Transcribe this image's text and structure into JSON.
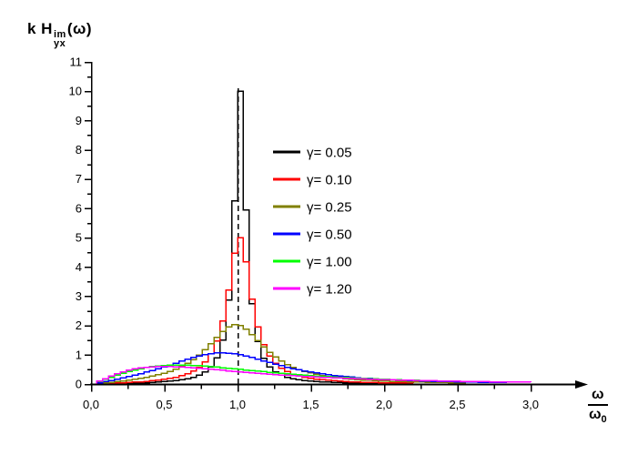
{
  "ui": {
    "page_bg": "#ffffff",
    "axis_color": "#000000",
    "dashed_line_color": "#000000"
  },
  "title": {
    "prefix": "k H",
    "sup": "im",
    "sub": "yx",
    "suffix": "(ω)"
  },
  "x_axis": {
    "label_numerator": "ω",
    "label_denominator": "ω",
    "label_denominator_sub": "0"
  },
  "chart_data": {
    "type": "line",
    "title": "k H_yx^im(omega)  vs  omega/omega_0",
    "xlabel": "ω/ω₀",
    "ylabel": "k H_yx^im(ω)",
    "xlim": [
      0,
      3.35
    ],
    "ylim": [
      0,
      11
    ],
    "grid": false,
    "legend_position": "upper-center-right",
    "x_ticks_major": [
      0.0,
      0.5,
      1.0,
      1.5,
      2.0,
      2.5,
      3.0
    ],
    "x_tick_labels": [
      "0,0",
      "0,5",
      "1,0",
      "1,5",
      "2,0",
      "2,5",
      "3,0"
    ],
    "x_ticks_minor": [
      0.25,
      0.75,
      1.25,
      1.75,
      2.25,
      2.75
    ],
    "y_ticks_major": [
      0,
      1,
      2,
      3,
      4,
      5,
      6,
      7,
      8,
      9,
      10,
      11
    ],
    "y_tick_labels": [
      "0",
      "1",
      "2",
      "3",
      "4",
      "5",
      "6",
      "7",
      "8",
      "9",
      "10",
      "11"
    ],
    "y_ticks_minor": [
      0.5,
      1.5,
      2.5,
      3.5,
      4.5,
      5.5,
      6.5,
      7.5,
      8.5,
      9.5,
      10.5
    ],
    "reference_line": {
      "x": 1.0,
      "style": "dashed",
      "color": "#000000",
      "top_value": 10.1
    },
    "formula": "y = 2*gamma*x / ((1 - x^2)^2 + (2*gamma*x)^2),  x = omega/omega0",
    "sample_step": 0.04,
    "series": [
      {
        "label": "γ= 0.05",
        "gamma": 0.05,
        "color": "#000000",
        "x_end": 2.0,
        "peak_x": 1.0,
        "peak_y": 10.0
      },
      {
        "label": "γ= 0.10",
        "gamma": 0.1,
        "color": "#ff0000",
        "x_end": 2.2,
        "peak_x": 1.0,
        "peak_y": 5.0
      },
      {
        "label": "γ= 0.25",
        "gamma": 0.25,
        "color": "#808000",
        "x_end": 2.56,
        "peak_x": 1.0,
        "peak_y": 2.0
      },
      {
        "label": "γ= 0.50",
        "gamma": 0.5,
        "color": "#0000ff",
        "x_end": 2.84,
        "peak_x": 0.9,
        "peak_y": 1.06
      },
      {
        "label": "γ= 1.00",
        "gamma": 1.0,
        "color": "#00ff00",
        "x_end": 2.88,
        "peak_x": 0.8,
        "peak_y": 0.6
      },
      {
        "label": "γ= 1.20",
        "gamma": 1.2,
        "color": "#ff00ff",
        "x_end": 3.0,
        "peak_x": 0.47,
        "peak_y": 0.6
      }
    ]
  }
}
